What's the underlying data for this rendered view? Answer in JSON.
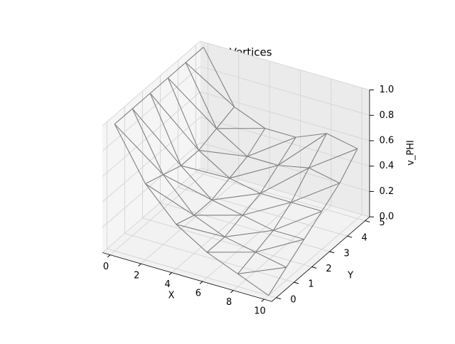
{
  "chart_data": {
    "type": "wireframe3d",
    "title": "PHI at Vertices",
    "xlabel": "X",
    "ylabel": "Y",
    "zlabel": "v_PHI",
    "x": [
      0,
      2,
      4,
      6,
      8,
      10
    ],
    "y": [
      0,
      1,
      2,
      3,
      4,
      5
    ],
    "z": [
      [
        1,
        0.6,
        0.35,
        0.2,
        0.1,
        0
      ],
      [
        1,
        0.55,
        0.3,
        0.2,
        0.15,
        0.1
      ],
      [
        1,
        0.5,
        0.3,
        0.25,
        0.2,
        0.2
      ],
      [
        1,
        0.5,
        0.35,
        0.3,
        0.3,
        0.3
      ],
      [
        1,
        0.55,
        0.4,
        0.4,
        0.45,
        0.4
      ],
      [
        1,
        0.6,
        0.5,
        0.5,
        0.6,
        0.55
      ]
    ],
    "color": "#808080",
    "xlim": [
      -0.5,
      10.5
    ],
    "xticks": [
      0,
      2,
      4,
      6,
      8,
      10
    ],
    "ylim": [
      -0.25,
      5.25
    ],
    "yticks": [
      0,
      1,
      2,
      3,
      4,
      5
    ],
    "zlim": [
      0,
      1
    ],
    "zticks": [
      {
        "value": 0,
        "label": "0.0"
      },
      {
        "value": 0.2,
        "label": "0.2"
      },
      {
        "value": 0.4,
        "label": "0.4"
      },
      {
        "value": 0.6,
        "label": "0.6"
      },
      {
        "value": 0.8,
        "label": "0.8"
      },
      {
        "value": 1,
        "label": "1.0"
      }
    ],
    "grid": true
  }
}
